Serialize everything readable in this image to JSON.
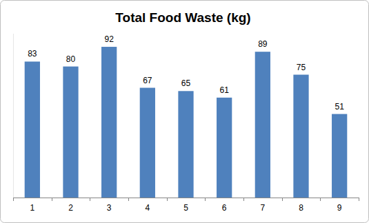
{
  "chart_data": {
    "type": "bar",
    "title": "Total Food Waste (kg)",
    "categories": [
      "1",
      "2",
      "3",
      "4",
      "5",
      "6",
      "7",
      "8",
      "9"
    ],
    "values": [
      83,
      80,
      92,
      67,
      65,
      61,
      89,
      75,
      51
    ],
    "color": "#4f81bd",
    "ylim": [
      0,
      100
    ],
    "grid": false,
    "data_labels": true,
    "tick_labels": "x"
  }
}
